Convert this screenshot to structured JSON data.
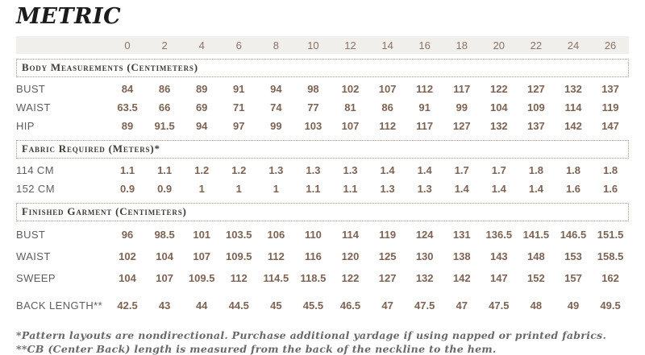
{
  "title": "METRIC",
  "sizes": [
    "0",
    "2",
    "4",
    "6",
    "8",
    "10",
    "12",
    "14",
    "16",
    "18",
    "20",
    "22",
    "24",
    "26"
  ],
  "sections": [
    {
      "heading": "Body Measurements (Centimeters)",
      "rows": [
        {
          "label": "BUST",
          "values": [
            "84",
            "86",
            "89",
            "91",
            "94",
            "98",
            "102",
            "107",
            "112",
            "117",
            "122",
            "127",
            "132",
            "137"
          ]
        },
        {
          "label": "WAIST",
          "values": [
            "63.5",
            "66",
            "69",
            "71",
            "74",
            "77",
            "81",
            "86",
            "91",
            "99",
            "104",
            "109",
            "114",
            "119"
          ]
        },
        {
          "label": "HIP",
          "values": [
            "89",
            "91.5",
            "94",
            "97",
            "99",
            "103",
            "107",
            "112",
            "117",
            "127",
            "132",
            "137",
            "142",
            "147"
          ]
        }
      ]
    },
    {
      "heading": "Fabric Required (Meters)*",
      "rows": [
        {
          "label": "114 CM",
          "values": [
            "1.1",
            "1.1",
            "1.2",
            "1.2",
            "1.3",
            "1.3",
            "1.3",
            "1.4",
            "1.4",
            "1.7",
            "1.7",
            "1.8",
            "1.8",
            "1.8"
          ]
        },
        {
          "label": "152 CM",
          "values": [
            "0.9",
            "0.9",
            "1",
            "1",
            "1",
            "1.1",
            "1.1",
            "1.3",
            "1.3",
            "1.4",
            "1.4",
            "1.4",
            "1.6",
            "1.6"
          ]
        }
      ]
    },
    {
      "heading": "Finished Garment (Centimeters)",
      "rows": [
        {
          "label": "BUST",
          "values": [
            "96",
            "98.5",
            "101",
            "103.5",
            "106",
            "110",
            "114",
            "119",
            "124",
            "131",
            "136.5",
            "141.5",
            "146.5",
            "151.5"
          ]
        },
        {
          "label": "WAIST",
          "values": [
            "102",
            "104",
            "107",
            "109.5",
            "112",
            "116",
            "120",
            "125",
            "130",
            "138",
            "143",
            "148",
            "153",
            "158.5"
          ]
        },
        {
          "label": "SWEEP",
          "values": [
            "104",
            "107",
            "109.5",
            "112",
            "114.5",
            "118.5",
            "122",
            "127",
            "132",
            "142",
            "147",
            "152",
            "157",
            "162"
          ]
        },
        {
          "label": "BACK LENGTH**",
          "values": [
            "42.5",
            "43",
            "44",
            "44.5",
            "45",
            "45.5",
            "46.5",
            "47",
            "47.5",
            "47",
            "47.5",
            "48",
            "49",
            "49.5"
          ]
        }
      ]
    }
  ],
  "footnotes": [
    "*Pattern layouts are nondirectional. Purchase additional yardage if using napped or printed fabrics.",
    "**CB (Center Back) length is measured from the back of the neckline to the hem."
  ],
  "colors": {
    "header_strip_bg": "#f1efec",
    "size_text": "#8b7366",
    "value_text": "#7d6354",
    "label_text": "#5e5e5e",
    "heading_text": "#3f3a34",
    "heading_border": "#a39584",
    "footnote_text": "#686868",
    "title_text": "#1b1b1b"
  }
}
